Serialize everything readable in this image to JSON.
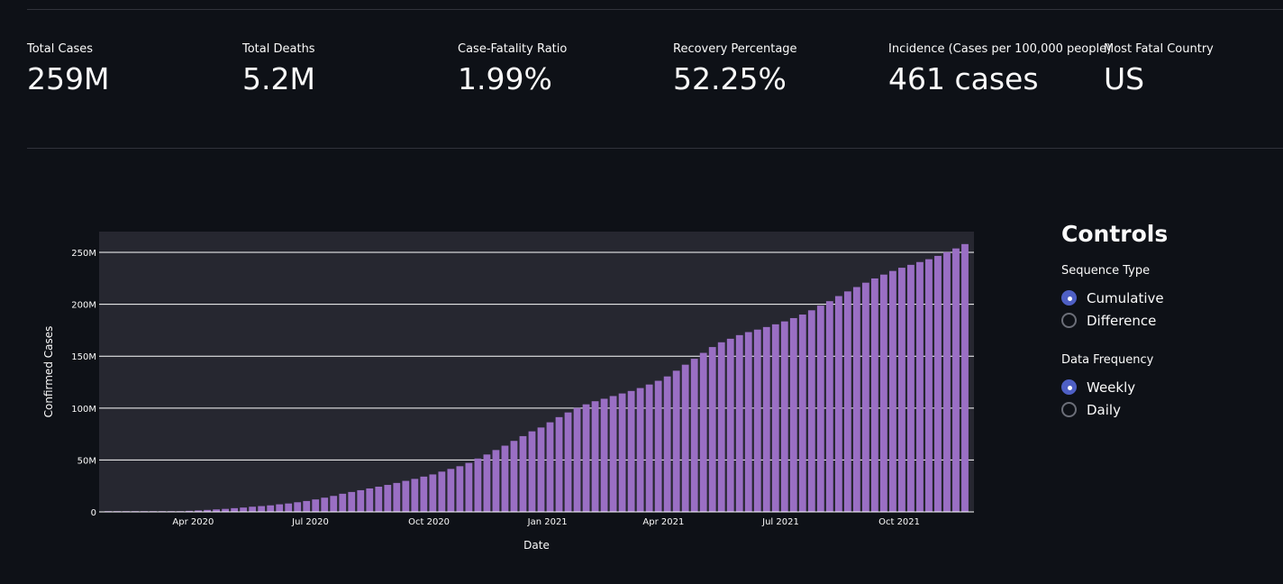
{
  "metrics": [
    {
      "label": "Total Cases",
      "value": "259M"
    },
    {
      "label": "Total Deaths",
      "value": "5.2M"
    },
    {
      "label": "Case-Fatality Ratio",
      "value": "1.99%"
    },
    {
      "label": "Recovery Percentage",
      "value": "52.25%"
    },
    {
      "label": "Incidence (Cases per 100,000 people)",
      "value": "461 cases"
    },
    {
      "label": "Most Fatal Country",
      "value": "US"
    }
  ],
  "controls": {
    "title": "Controls",
    "sequence_type": {
      "label": "Sequence Type",
      "options": [
        "Cumulative",
        "Difference"
      ],
      "selected": "Cumulative"
    },
    "data_frequency": {
      "label": "Data Frequency",
      "options": [
        "Weekly",
        "Daily"
      ],
      "selected": "Weekly"
    }
  },
  "colors": {
    "background": "#0e1117",
    "plot_background": "#262730",
    "bar": "#9a6fc4",
    "radio_selected": "#4e5fc4"
  },
  "chart_data": {
    "type": "bar",
    "xlabel": "Date",
    "ylabel": "Confirmed Cases",
    "ylim": [
      0,
      270000000
    ],
    "y_ticks": [
      0,
      50000000,
      100000000,
      150000000,
      200000000,
      250000000
    ],
    "y_tick_labels": [
      "0",
      "50M",
      "100M",
      "150M",
      "200M",
      "250M"
    ],
    "x_tick_labels": [
      "Apr 2020",
      "Jul 2020",
      "Oct 2020",
      "Jan 2021",
      "Apr 2021",
      "Jul 2021",
      "Oct 2021"
    ],
    "x_tick_dates": [
      "2020-04-01",
      "2020-07-01",
      "2020-10-01",
      "2021-01-01",
      "2021-04-01",
      "2021-07-01",
      "2021-10-01"
    ],
    "x_range": [
      "2020-01-19",
      "2021-11-28"
    ],
    "grid": true,
    "series": [
      {
        "x": [
          "2020-01-26",
          "2020-02-02",
          "2020-02-09",
          "2020-02-16",
          "2020-02-23",
          "2020-03-01",
          "2020-03-08",
          "2020-03-15",
          "2020-03-22",
          "2020-03-29",
          "2020-04-05",
          "2020-04-12",
          "2020-04-19",
          "2020-04-26",
          "2020-05-03",
          "2020-05-10",
          "2020-05-17",
          "2020-05-24",
          "2020-05-31",
          "2020-06-07",
          "2020-06-14",
          "2020-06-21",
          "2020-06-28",
          "2020-07-05",
          "2020-07-12",
          "2020-07-19",
          "2020-07-26",
          "2020-08-02",
          "2020-08-09",
          "2020-08-16",
          "2020-08-23",
          "2020-08-30",
          "2020-09-06",
          "2020-09-13",
          "2020-09-20",
          "2020-09-27",
          "2020-10-04",
          "2020-10-11",
          "2020-10-18",
          "2020-10-25",
          "2020-11-01",
          "2020-11-08",
          "2020-11-15",
          "2020-11-22",
          "2020-11-29",
          "2020-12-06",
          "2020-12-13",
          "2020-12-20",
          "2020-12-27",
          "2021-01-03",
          "2021-01-10",
          "2021-01-17",
          "2021-01-24",
          "2021-01-31",
          "2021-02-07",
          "2021-02-14",
          "2021-02-21",
          "2021-02-28",
          "2021-03-07",
          "2021-03-14",
          "2021-03-21",
          "2021-03-28",
          "2021-04-04",
          "2021-04-11",
          "2021-04-18",
          "2021-04-25",
          "2021-05-02",
          "2021-05-09",
          "2021-05-16",
          "2021-05-23",
          "2021-05-30",
          "2021-06-06",
          "2021-06-13",
          "2021-06-20",
          "2021-06-27",
          "2021-07-04",
          "2021-07-11",
          "2021-07-18",
          "2021-07-25",
          "2021-08-01",
          "2021-08-08",
          "2021-08-15",
          "2021-08-22",
          "2021-08-29",
          "2021-09-05",
          "2021-09-12",
          "2021-09-19",
          "2021-09-26",
          "2021-10-03",
          "2021-10-10",
          "2021-10-17",
          "2021-10-24",
          "2021-10-31",
          "2021-11-07",
          "2021-11-14",
          "2021-11-21"
        ],
        "values": [
          0,
          0,
          0.1,
          0.1,
          0.1,
          0.1,
          0.1,
          0.3,
          0.5,
          1.0,
          1.4,
          1.9,
          2.4,
          2.9,
          3.6,
          4.2,
          5.0,
          5.6,
          6.3,
          7.3,
          8.1,
          9.3,
          10.5,
          12.0,
          13.7,
          15.4,
          17.5,
          19.2,
          20.9,
          22.6,
          24.3,
          26.0,
          27.9,
          29.9,
          31.8,
          34.0,
          36.1,
          38.8,
          41.4,
          44.0,
          47.2,
          51.4,
          55.3,
          59.6,
          63.8,
          68.4,
          73.0,
          77.6,
          81.3,
          86.3,
          91.3,
          95.8,
          100.1,
          103.6,
          106.6,
          109.0,
          111.6,
          114.1,
          116.5,
          119.3,
          122.7,
          126.3,
          130.5,
          136.0,
          141.8,
          147.5,
          153.2,
          158.8,
          163.4,
          166.8,
          170.3,
          173.2,
          175.6,
          178.1,
          180.7,
          183.5,
          186.7,
          190.1,
          194.2,
          198.7,
          203.0,
          207.9,
          212.4,
          216.6,
          220.8,
          224.9,
          228.6,
          232.1,
          235.2,
          238.0,
          240.7,
          243.4,
          246.6,
          250.2,
          253.8,
          258.0
        ]
      }
    ],
    "value_unit": "million cases"
  }
}
